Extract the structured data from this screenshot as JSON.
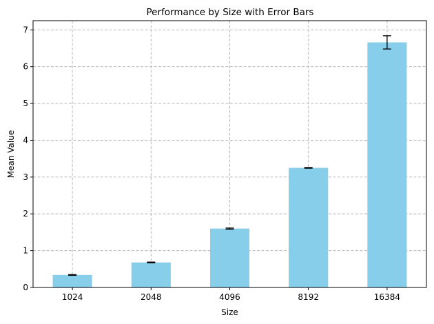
{
  "chart_data": {
    "type": "bar",
    "title": "Performance by Size with Error Bars",
    "xlabel": "Size",
    "ylabel": "Mean Value",
    "categories": [
      "1024",
      "2048",
      "4096",
      "8192",
      "16384"
    ],
    "values": [
      0.34,
      0.68,
      1.6,
      3.25,
      6.66
    ],
    "errors": [
      0.01,
      0.01,
      0.015,
      0.01,
      0.18
    ],
    "ylim": [
      0,
      7.25
    ],
    "yticks": [
      0,
      1,
      2,
      3,
      4,
      5,
      6,
      7
    ],
    "grid": true,
    "bar_color": "#87ceeb",
    "error_color": "#000000"
  }
}
